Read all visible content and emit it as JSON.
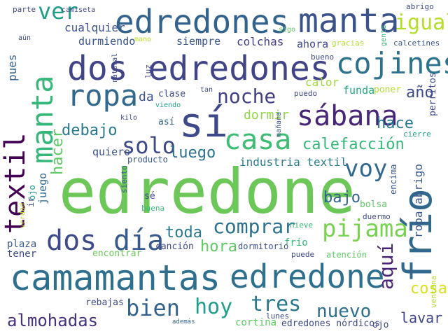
{
  "words": [
    {
      "text": "edredone",
      "color": "#6cc758"
    },
    {
      "text": "camamantas",
      "color": "#2e6f8e"
    },
    {
      "text": "edredone",
      "color": "#2e6f8e"
    },
    {
      "text": "edredones",
      "color": "#33638d"
    },
    {
      "text": "manta",
      "color": "#3b528b"
    },
    {
      "text": "dos edredones",
      "color": "#414487"
    },
    {
      "text": "frío",
      "color": "#31688e"
    },
    {
      "text": "textil",
      "color": "#440154"
    },
    {
      "text": "manta",
      "color": "#35b779"
    },
    {
      "text": "ropa",
      "color": "#31688e"
    },
    {
      "text": "sí",
      "color": "#3e4989"
    },
    {
      "text": "sábana",
      "color": "#482677"
    },
    {
      "text": "cojines",
      "color": "#2c728e"
    },
    {
      "text": "casa",
      "color": "#3dbc74"
    },
    {
      "text": "voy",
      "color": "#31688e"
    },
    {
      "text": "dos",
      "color": "#3e4a89"
    },
    {
      "text": "día",
      "color": "#38598c"
    },
    {
      "text": "pijama",
      "color": "#7ad151"
    },
    {
      "text": "noche",
      "color": "#424086"
    },
    {
      "text": "solo",
      "color": "#3e4989"
    },
    {
      "text": "comprar",
      "color": "#2c728e"
    },
    {
      "text": "hacer",
      "color": "#5ec962"
    },
    {
      "text": "aquí",
      "color": "#482475"
    },
    {
      "text": "bien",
      "color": "#33638d"
    },
    {
      "text": "hoy",
      "color": "#1f9e89"
    },
    {
      "text": "tres",
      "color": "#2a788e"
    },
    {
      "text": "nuevo",
      "color": "#2d708e"
    },
    {
      "text": "almohadas",
      "color": "#46327e"
    },
    {
      "text": "igual",
      "color": "#b5de2b"
    },
    {
      "text": "ver",
      "color": "#1f9e89"
    },
    {
      "text": "calefacción",
      "color": "#35b779"
    },
    {
      "text": "hace",
      "color": "#2a788e"
    },
    {
      "text": "debajo",
      "color": "#2a788e"
    },
    {
      "text": "luego",
      "color": "#2c728e"
    },
    {
      "text": "toda",
      "color": "#2a788e"
    },
    {
      "text": "hora",
      "color": "#5ec962"
    },
    {
      "text": "bajo",
      "color": "#33638d"
    },
    {
      "text": "cosa",
      "color": "#d8e219"
    },
    {
      "text": "lavar",
      "color": "#404688"
    },
    {
      "text": "año",
      "color": "#3e4989"
    },
    {
      "text": "dormir",
      "color": "#8fd744"
    },
    {
      "text": "industria textil",
      "color": "#287c8e"
    },
    {
      "text": "cualquier",
      "color": "#3b528b"
    },
    {
      "text": "durmiendo",
      "color": "#39568c"
    },
    {
      "text": "siempre",
      "color": "#39568c"
    },
    {
      "text": "colchas",
      "color": "#433e85"
    },
    {
      "text": "ahora",
      "color": "#3e4989"
    },
    {
      "text": "pues",
      "color": "#33638d"
    },
    {
      "text": "calor",
      "color": "#a0da39"
    },
    {
      "text": "funda",
      "color": "#22a884"
    },
    {
      "text": "poner",
      "color": "#b5de2b"
    },
    {
      "text": "clase",
      "color": "#3e4989"
    },
    {
      "text": "da",
      "color": "#3b528b"
    },
    {
      "text": "así",
      "color": "#31688e"
    },
    {
      "text": "quiero",
      "color": "#3b528b"
    },
    {
      "text": "producto",
      "color": "#39568c"
    },
    {
      "text": "siento",
      "color": "#39568c"
    },
    {
      "text": "sé",
      "color": "#3e4989"
    },
    {
      "text": "buena",
      "color": "#35b779"
    },
    {
      "text": "juego",
      "color": "#31688e"
    },
    {
      "text": "ojo",
      "color": "#1f9e89"
    },
    {
      "text": "ir",
      "color": "#3e4989"
    },
    {
      "text": "plaza",
      "color": "#39568c"
    },
    {
      "text": "tener",
      "color": "#3e4989"
    },
    {
      "text": "encontrar",
      "color": "#6cc758"
    },
    {
      "text": "canción",
      "color": "#3e4989"
    },
    {
      "text": "dormitorio",
      "color": "#3b528b"
    },
    {
      "text": "frío",
      "color": "#35b779"
    },
    {
      "text": "puede",
      "color": "#3e4989"
    },
    {
      "text": "atención",
      "color": "#5ec962"
    },
    {
      "text": "rebajas",
      "color": "#3e4989"
    },
    {
      "text": "además",
      "color": "#33638d"
    },
    {
      "text": "lunes",
      "color": "#3e4989"
    },
    {
      "text": "cortina",
      "color": "#5ec962"
    },
    {
      "text": "edredones nórdicos",
      "color": "#3e4989"
    },
    {
      "text": "ojo",
      "color": "#3e4989"
    },
    {
      "text": "ventana",
      "color": "#b5de2b"
    },
    {
      "text": "nieve",
      "color": "#35b779"
    },
    {
      "text": "duermo",
      "color": "#3e4989"
    },
    {
      "text": "bolsa",
      "color": "#5ec962"
    },
    {
      "text": "encima",
      "color": "#39568c"
    },
    {
      "text": "ropa abrigo",
      "color": "#39568c"
    },
    {
      "text": "cierre",
      "color": "#1f9e89"
    },
    {
      "text": "perritos",
      "color": "#3e4989"
    },
    {
      "text": "puedo",
      "color": "#3e4989"
    },
    {
      "text": "bueno",
      "color": "#3e4989"
    },
    {
      "text": "gracias",
      "color": "#b5de2b"
    },
    {
      "text": "gente",
      "color": "#35b779"
    },
    {
      "text": "calcetines",
      "color": "#39568c"
    },
    {
      "text": "abrigo",
      "color": "#3e4989"
    },
    {
      "text": "sigo",
      "color": "#5ec962"
    },
    {
      "text": "mano",
      "color": "#b5de2b"
    },
    {
      "text": "aún",
      "color": "#3e4989"
    },
    {
      "text": "parte",
      "color": "#3e4989"
    },
    {
      "text": "camiseta",
      "color": "#3e4989"
    },
    {
      "text": "luz",
      "color": "#3e4989"
    },
    {
      "text": "tan",
      "color": "#3e4989"
    },
    {
      "text": "viendo",
      "color": "#1f9e89"
    },
    {
      "text": "kilo",
      "color": "#3e4989"
    },
    {
      "text": "mañana",
      "color": "#39568c"
    },
    {
      "text": "verdad",
      "color": "#b5de2b"
    },
    {
      "text": "natural",
      "color": "#3e4989"
    }
  ]
}
